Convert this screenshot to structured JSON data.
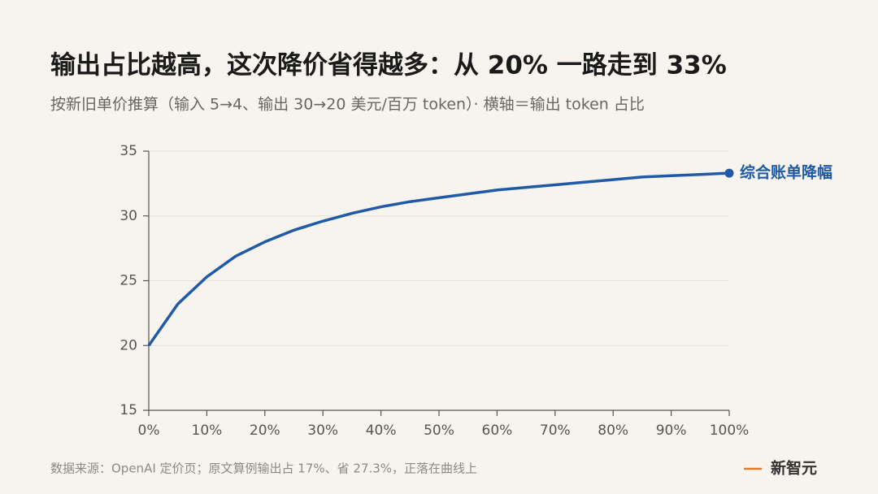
{
  "chart_data": {
    "type": "line",
    "title": "输出占比越高，这次降价省得越多：从 20% 一路走到 33%",
    "subtitle": "按新旧单价推算（输入 5→4、输出 30→20 美元/百万 token）· 横轴＝输出 token 占比",
    "source": "数据来源：OpenAI 定价页；原文算例输出占 17%、省 27.3%，正落在曲线上",
    "brand": "新智元",
    "x": [
      0,
      5,
      10,
      15,
      20,
      25,
      30,
      35,
      40,
      45,
      50,
      55,
      60,
      65,
      70,
      75,
      80,
      85,
      90,
      95,
      100
    ],
    "series": [
      {
        "name": "综合账单降幅",
        "color": "#1f5aa6",
        "values": [
          20,
          23.2,
          25.3,
          26.9,
          28,
          28.9,
          29.6,
          30.2,
          30.7,
          31.1,
          31.4,
          31.7,
          32,
          32.2,
          32.4,
          32.6,
          32.8,
          33,
          33.1,
          33.2,
          33.3
        ]
      }
    ],
    "xlim": [
      0,
      100
    ],
    "xticks": [
      {
        "value": 0,
        "label": "0%"
      },
      {
        "value": 10,
        "label": "10%"
      },
      {
        "value": 20,
        "label": "20%"
      },
      {
        "value": 30,
        "label": "30%"
      },
      {
        "value": 40,
        "label": "40%"
      },
      {
        "value": 50,
        "label": "50%"
      },
      {
        "value": 60,
        "label": "60%"
      },
      {
        "value": 70,
        "label": "70%"
      },
      {
        "value": 80,
        "label": "80%"
      },
      {
        "value": 90,
        "label": "90%"
      },
      {
        "value": 100,
        "label": "100%"
      }
    ],
    "ylim": [
      15,
      35
    ],
    "yticks": [
      15,
      20,
      25,
      30,
      35
    ],
    "grid": true
  }
}
